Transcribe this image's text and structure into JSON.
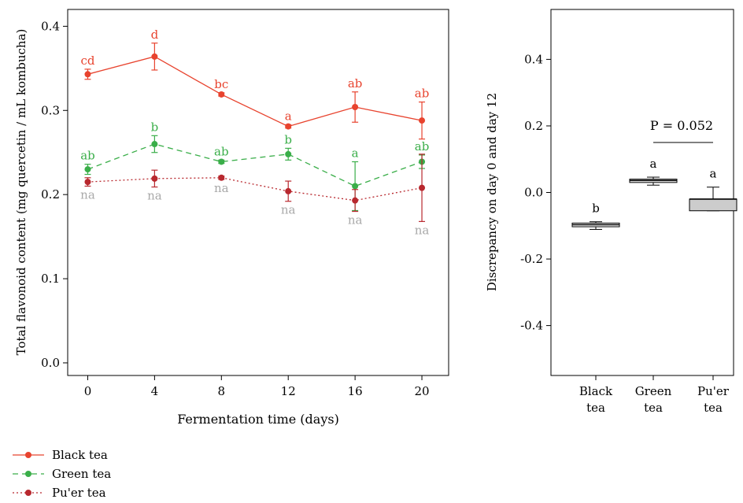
{
  "chart_data": [
    {
      "type": "line",
      "xlabel": "Fermentation time (days)",
      "ylabel": "Total flavonoid content (mg quercetin / mL kombucha)",
      "x": [
        0,
        4,
        8,
        12,
        16,
        20
      ],
      "xticks": [
        "0",
        "4",
        "8",
        "12",
        "16",
        "20"
      ],
      "xlim": [
        -1.2,
        21.6
      ],
      "ylim": [
        -0.015,
        0.42
      ],
      "yticks": [
        "0.0",
        "0.1",
        "0.2",
        "0.3",
        "0.4"
      ],
      "legend": "bottom-left",
      "series": [
        {
          "name": "Black tea",
          "color": "#e8432e",
          "style": "solid",
          "values": [
            0.343,
            0.364,
            0.319,
            0.281,
            0.304,
            0.288
          ],
          "errors": [
            0.006,
            0.016,
            0.002,
            0.002,
            0.018,
            0.022
          ],
          "labels": [
            "cd",
            "d",
            "bc",
            "a",
            "ab",
            "ab"
          ]
        },
        {
          "name": "Green tea",
          "color": "#3aae49",
          "style": "dashed",
          "values": [
            0.23,
            0.26,
            0.239,
            0.248,
            0.21,
            0.239
          ],
          "errors": [
            0.006,
            0.01,
            0.002,
            0.007,
            0.029,
            0.008
          ],
          "labels": [
            "ab",
            "b",
            "ab",
            "b",
            "a",
            "ab"
          ]
        },
        {
          "name": "Pu'er tea",
          "color": "#b8282e",
          "style": "dotted",
          "values": [
            0.215,
            0.219,
            0.22,
            0.204,
            0.193,
            0.208
          ],
          "errors": [
            0.005,
            0.01,
            0.002,
            0.012,
            0.013,
            0.04
          ],
          "labels": [
            "na",
            "na",
            "na",
            "na",
            "na",
            "na"
          ],
          "label_color": "#a9a9a9"
        }
      ]
    },
    {
      "type": "box",
      "ylabel": "Discrepancy on day 0 and day 12",
      "categories": [
        [
          "Black",
          "tea"
        ],
        [
          "Green",
          "tea"
        ],
        [
          "Pu'er",
          "tea"
        ]
      ],
      "ylim": [
        -0.55,
        0.55
      ],
      "yticks": [
        {
          "value": 0.4,
          "label": "0.4"
        },
        {
          "value": 0.2,
          "label": "0.2"
        },
        {
          "value": 0.0,
          "label": "0.0"
        },
        {
          "value": -0.2,
          "label": "-0.2"
        },
        {
          "value": -0.4,
          "label": "-0.4"
        }
      ],
      "boxes": [
        {
          "min": -0.111,
          "q1": -0.103,
          "median": -0.097,
          "q3": -0.092,
          "max": -0.088,
          "fill": "#ffffff",
          "letter": "b"
        },
        {
          "min": 0.022,
          "q1": 0.03,
          "median": 0.036,
          "q3": 0.04,
          "max": 0.046,
          "fill": "#ffffff",
          "letter": "a"
        },
        {
          "min": -0.055,
          "q1": -0.055,
          "median": -0.02,
          "q3": -0.02,
          "max": 0.016,
          "fill": "#cccccc",
          "letter": "a"
        }
      ],
      "annotation": "P = 0.052"
    }
  ]
}
